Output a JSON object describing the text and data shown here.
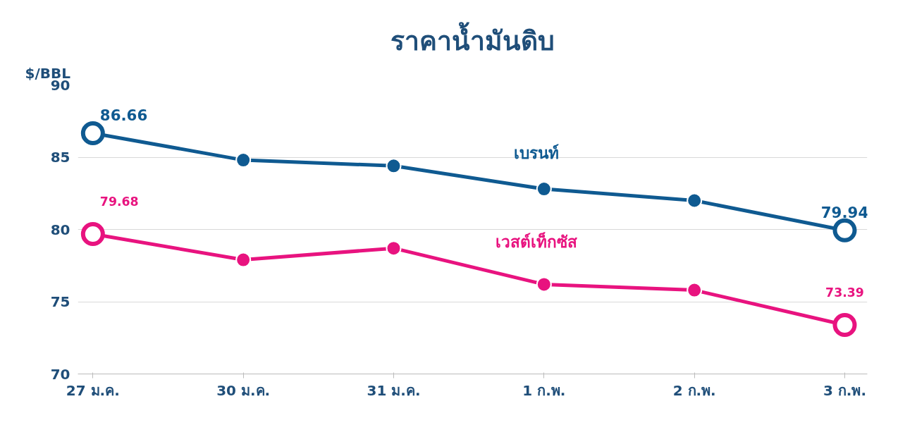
{
  "chart_data": {
    "type": "line",
    "title": "ราคาน้ำมันดิบ",
    "ylabel": "$/BBL",
    "categories": [
      "27 ม.ค.",
      "30 ม.ค.",
      "31 ม.ค.",
      "1 ก.พ.",
      "2 ก.พ.",
      "3 ก.พ."
    ],
    "series": [
      {
        "name": "เบรนท์",
        "color": "#0f5a91",
        "values": [
          86.66,
          84.8,
          84.4,
          82.8,
          82.0,
          79.94
        ],
        "value_labels": [
          "86.66",
          null,
          null,
          null,
          null,
          "79.94"
        ]
      },
      {
        "name": "เวสต์เท็กซัส",
        "color": "#e8137f",
        "values": [
          79.68,
          77.9,
          78.7,
          76.2,
          75.8,
          73.39
        ],
        "value_labels": [
          "79.68",
          null,
          null,
          null,
          null,
          "73.39"
        ]
      }
    ],
    "ylim": [
      70,
      90
    ],
    "yticks": [
      70,
      75,
      80,
      85,
      90
    ],
    "grid": "y",
    "marker": "circle",
    "line_style": "solid"
  }
}
